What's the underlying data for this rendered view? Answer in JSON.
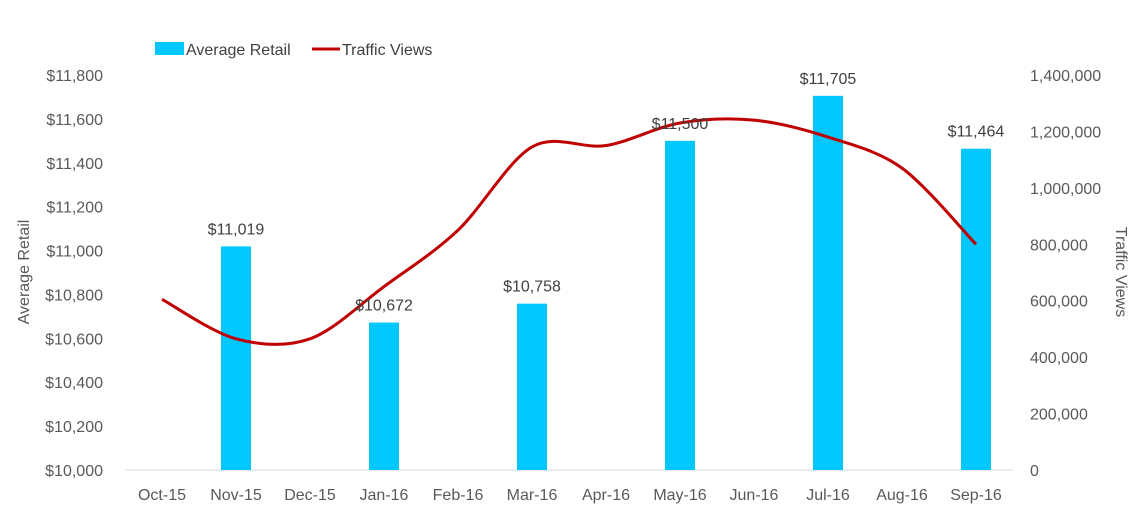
{
  "chart_data": {
    "type": "bar",
    "categories": [
      "Oct-15",
      "Nov-15",
      "Dec-15",
      "Jan-16",
      "Feb-16",
      "Mar-16",
      "Apr-16",
      "May-16",
      "Jun-16",
      "Jul-16",
      "Aug-16",
      "Sep-16"
    ],
    "series": [
      {
        "name": "Average Retail",
        "type": "bar",
        "axis": "left",
        "color": "#00c8ff",
        "values": [
          null,
          11019,
          null,
          10672,
          null,
          10758,
          null,
          11500,
          null,
          11705,
          null,
          11464
        ],
        "labels": [
          "",
          "$11,019",
          "",
          "$10,672",
          "",
          "$10,758",
          "",
          "$11,500",
          "",
          "$11,705",
          "",
          "$11,464"
        ]
      },
      {
        "name": "Traffic Views",
        "type": "line",
        "axis": "right",
        "color": "#c00000",
        "values": [
          605000,
          465000,
          465000,
          650000,
          850000,
          1145000,
          1150000,
          1230000,
          1240000,
          1180000,
          1070000,
          800000
        ]
      }
    ],
    "y_left": {
      "label": "Average Retail",
      "min": 10000,
      "max": 11800,
      "ticks": [
        10000,
        10200,
        10400,
        10600,
        10800,
        11000,
        11200,
        11400,
        11600,
        11800
      ],
      "tick_labels": [
        "$10,000",
        "$10,200",
        "$10,400",
        "$10,600",
        "$10,800",
        "$11,000",
        "$11,200",
        "$11,400",
        "$11,600",
        "$11,800"
      ]
    },
    "y_right": {
      "label": "Traffic Views",
      "min": 0,
      "max": 1400000,
      "ticks": [
        0,
        200000,
        400000,
        600000,
        800000,
        1000000,
        1200000,
        1400000
      ],
      "tick_labels": [
        "0",
        "200,000",
        "400,000",
        "600,000",
        "800,000",
        "1,000,000",
        "1,200,000",
        "1,400,000"
      ]
    },
    "legend_position": "top-left",
    "grid": false
  }
}
